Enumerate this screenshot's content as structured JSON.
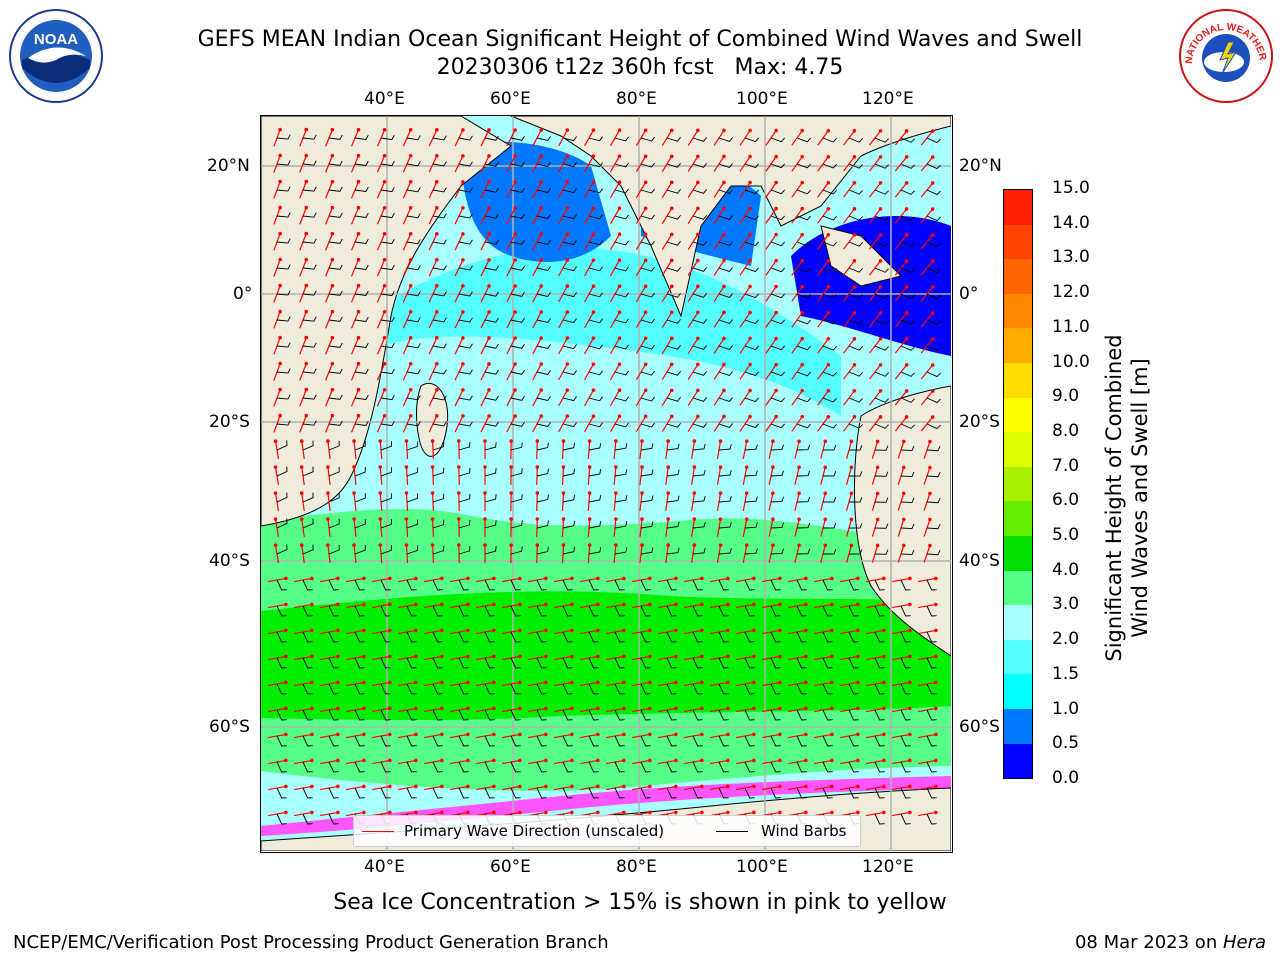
{
  "title": {
    "line1": "GEFS MEAN Indian Ocean Significant Height of Combined Wind Waves and Swell",
    "line2": "20230306 t12z 360h fcst   Max: 4.75"
  },
  "logos": {
    "left": {
      "name": "noaa-logo",
      "text": "NOAA"
    },
    "right": {
      "name": "nws-logo",
      "text": "NATIONAL WEATHER SERVICE"
    }
  },
  "map": {
    "lon_ticks": [
      "40°E",
      "60°E",
      "80°E",
      "100°E",
      "120°E"
    ],
    "lat_ticks_left": [
      "20°N",
      "0°",
      "20°S",
      "40°S",
      "60°S"
    ],
    "lat_ticks_right": [
      "20°N",
      "0°",
      "20°S",
      "40°S",
      "60°S"
    ],
    "colors": {
      "land": "#efecdc",
      "band_0_0_5": "#0000ff",
      "band_0_5_1": "#0077ff",
      "band_1_1_5": "#00ffff",
      "band_1_5_2": "#55ffff",
      "band_2_3": "#aaffff",
      "band_3_4": "#55ff88",
      "band_4_5": "#00ee00",
      "sea_ice": "#ff55ff",
      "wave_arrow": "#ff0000",
      "wind_barb": "#000000",
      "grid": "#b0b0b0"
    },
    "legend": {
      "wave_label": "Primary Wave Direction (unscaled)",
      "barb_label": "Wind Barbs"
    }
  },
  "colorbar": {
    "title_line1": "Significant Height of Combined",
    "title_line2": "Wind Waves and Swell [m]",
    "labels": [
      "15.0",
      "14.0",
      "13.0",
      "12.0",
      "11.0",
      "10.0",
      "9.0",
      "8.0",
      "7.0",
      "6.0",
      "5.0",
      "4.0",
      "3.0",
      "2.0",
      "1.5",
      "1.0",
      "0.5",
      "0.0"
    ],
    "colors": [
      "#ff0000",
      "#ff2000",
      "#ff4400",
      "#ff6600",
      "#ff8800",
      "#ffaa00",
      "#ffdd00",
      "#ffff00",
      "#ddff00",
      "#aaee00",
      "#66ee00",
      "#00dd00",
      "#55ff88",
      "#aaffff",
      "#55ffff",
      "#00ffff",
      "#0077ff",
      "#0000ff"
    ]
  },
  "caption": "Sea Ice Concentration > 15% is shown in pink to yellow",
  "footer": {
    "left": "NCEP/EMC/Verification Post Processing Product Generation Branch",
    "right_date": "08 Mar 2023 on ",
    "right_host": "Hera"
  }
}
